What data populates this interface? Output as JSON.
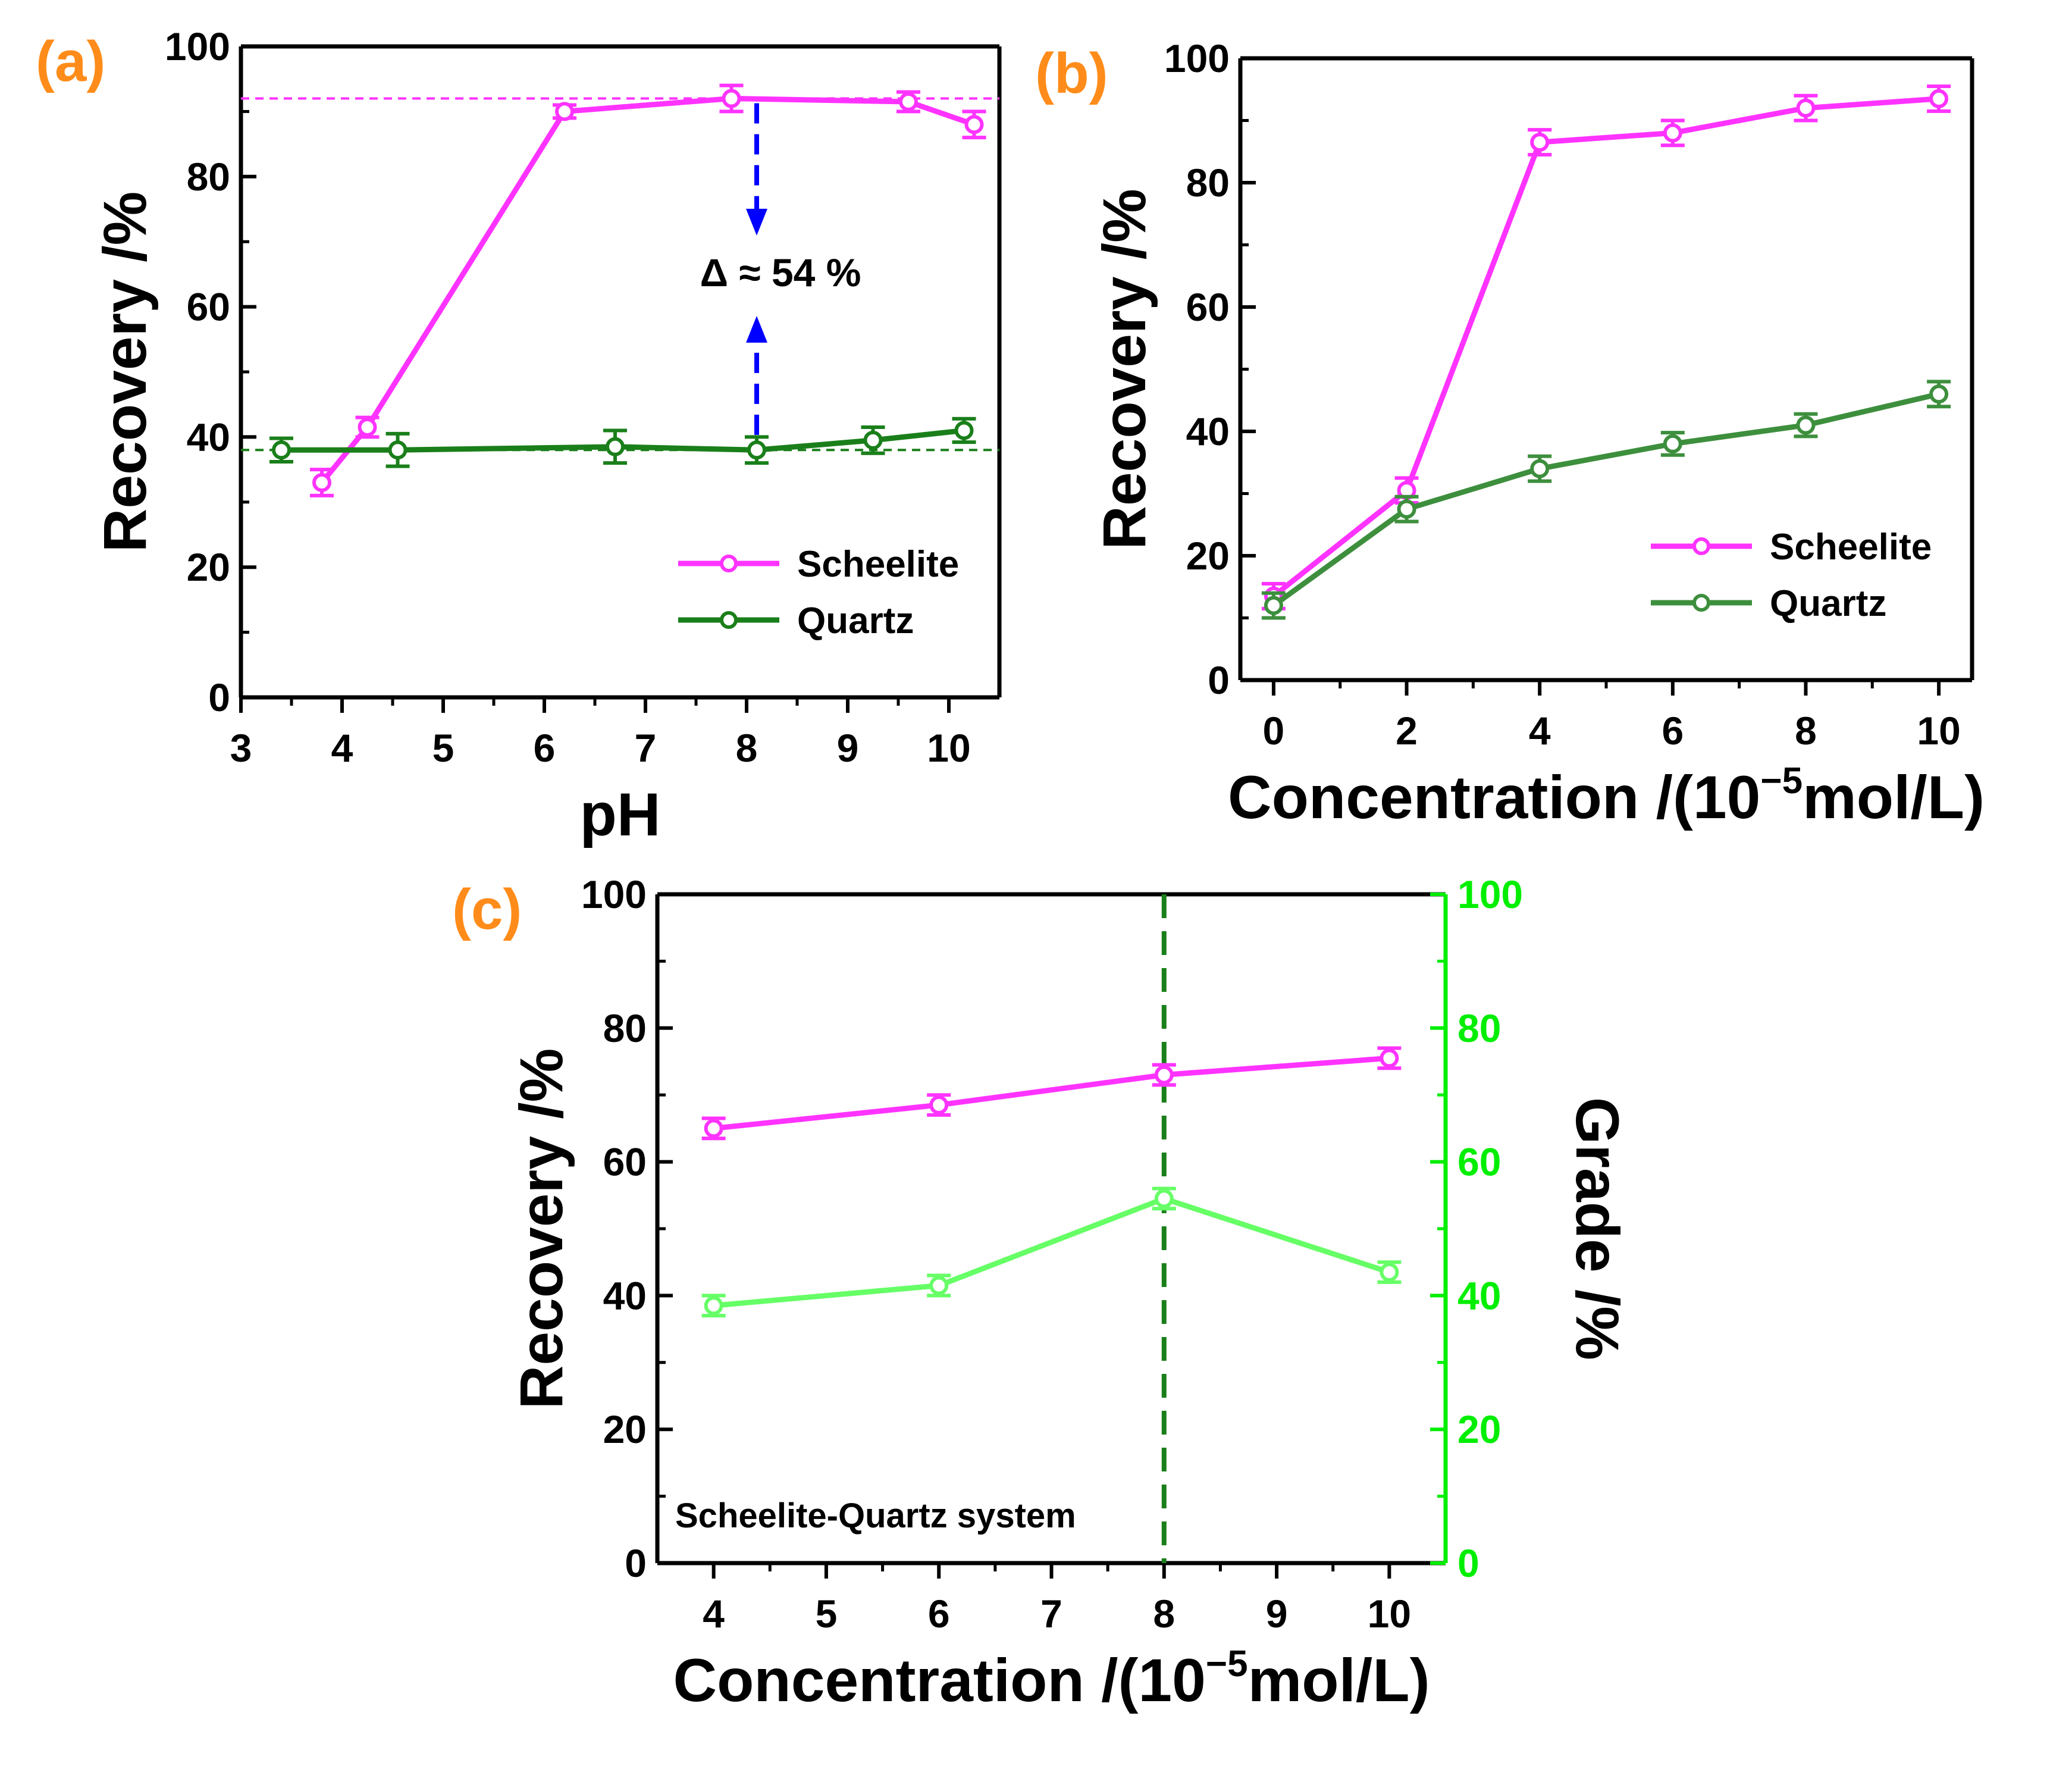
{
  "chart_data": [
    {
      "id": "a",
      "type": "line",
      "panel_label": "(a)",
      "title": "",
      "xlabel": "pH",
      "ylabel": "Recovery /%",
      "xlim": [
        3,
        10.5
      ],
      "ylim": [
        0,
        100
      ],
      "xticks": [
        "3",
        "4",
        "5",
        "6",
        "7",
        "8",
        "9",
        "10"
      ],
      "yticks": [
        "0",
        "20",
        "40",
        "60",
        "80",
        "100"
      ],
      "legend_position": "bottom-right",
      "series": [
        {
          "name": "Scheelite",
          "color": "#ff33ff",
          "x": [
            3.8,
            4.25,
            6.2,
            7.85,
            9.6,
            10.25
          ],
          "y": [
            33,
            41.5,
            90,
            92,
            91.5,
            88
          ],
          "err": [
            2,
            1.5,
            1,
            2,
            1.5,
            2
          ]
        },
        {
          "name": "Quartz",
          "color": "#1a7f1a",
          "x": [
            3.4,
            4.55,
            6.7,
            8.1,
            9.25,
            10.15
          ],
          "y": [
            38,
            38,
            38.5,
            38,
            39.5,
            41
          ],
          "err": [
            1.8,
            2.5,
            2.5,
            2,
            2,
            1.8
          ]
        }
      ],
      "reference_lines": [
        {
          "value": 92,
          "color": "#ff33ff"
        },
        {
          "value": 38,
          "color": "#1a7f1a"
        }
      ],
      "annotation": "Δ ≈ 54 %",
      "arrow_x": 8.1,
      "arrow_color": "#0000ff"
    },
    {
      "id": "b",
      "type": "line",
      "panel_label": "(b)",
      "title": "",
      "xlabel": "Concentration /(10",
      "xlabel_exp": "−5",
      "xlabel_unit": "mol/L)",
      "ylabel": "Recovery /%",
      "xlim": [
        -0.5,
        10.5
      ],
      "ylim": [
        0,
        100
      ],
      "xticks": [
        "0",
        "2",
        "4",
        "6",
        "8",
        "10"
      ],
      "yticks": [
        "0",
        "20",
        "40",
        "60",
        "80",
        "100"
      ],
      "legend_position": "bottom-right",
      "series": [
        {
          "name": "Scheelite",
          "color": "#ff33ff",
          "x": [
            0,
            2,
            4,
            6,
            8,
            10
          ],
          "y": [
            13.5,
            30.5,
            86.5,
            88,
            92,
            93.5
          ],
          "err": [
            2,
            2,
            2,
            2,
            2,
            2
          ]
        },
        {
          "name": "Quartz",
          "color": "#3d8f3d",
          "x": [
            0,
            2,
            4,
            6,
            8,
            10
          ],
          "y": [
            12,
            27.5,
            34,
            38,
            41,
            46
          ],
          "err": [
            2,
            2,
            2,
            1.8,
            1.8,
            2
          ]
        }
      ]
    },
    {
      "id": "c",
      "type": "line",
      "panel_label": "(c)",
      "title": "",
      "xlabel": "Concentration /(10",
      "xlabel_exp": "−5",
      "xlabel_unit": "mol/L)",
      "ylabel": "Recovery /%",
      "y2label": "Grade /%",
      "xlim": [
        3.5,
        10.5
      ],
      "ylim": [
        0,
        100
      ],
      "y2lim": [
        0,
        100
      ],
      "xticks": [
        "4",
        "5",
        "6",
        "7",
        "8",
        "9",
        "10"
      ],
      "yticks": [
        "0",
        "20",
        "40",
        "60",
        "80",
        "100"
      ],
      "y2ticks": [
        "0",
        "20",
        "40",
        "60",
        "80",
        "100"
      ],
      "note": "Scheelite-Quartz system",
      "vline_x": 8,
      "vline_color": "#1a7f1a",
      "series": [
        {
          "name": "Recovery",
          "axis": "left",
          "color": "#ff33ff",
          "x": [
            4,
            6,
            8,
            10
          ],
          "y": [
            65,
            68.5,
            73,
            75.5
          ],
          "err": [
            1.5,
            1.5,
            1.5,
            1.5
          ]
        },
        {
          "name": "Grade",
          "axis": "right",
          "color": "#66ff66",
          "x": [
            4,
            6,
            8,
            10
          ],
          "y": [
            38.5,
            41.5,
            54.5,
            43.5
          ],
          "err": [
            1.5,
            1.5,
            1.5,
            1.5
          ]
        }
      ],
      "y2_axis_color": "#00ee00"
    }
  ]
}
